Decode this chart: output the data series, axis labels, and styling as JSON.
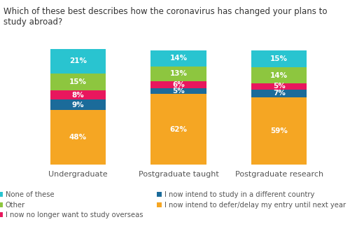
{
  "title": "Which of these best describes how the coronavirus has changed your plans to study abroad?",
  "categories": [
    "Undergraduate",
    "Postgraduate taught",
    "Postgraduate research"
  ],
  "segments": [
    {
      "label": "I now intend to defer/delay my entry until next year",
      "color": "#F5A623",
      "values": [
        48,
        62,
        59
      ]
    },
    {
      "label": "I now intend to study in a different country",
      "color": "#1B6B9A",
      "values": [
        9,
        5,
        7
      ]
    },
    {
      "label": "I now no longer want to study overseas",
      "color": "#E8175D",
      "values": [
        8,
        6,
        5
      ]
    },
    {
      "label": "Other",
      "color": "#8DC63F",
      "values": [
        15,
        13,
        14
      ]
    },
    {
      "label": "None of these",
      "color": "#29C4D0",
      "values": [
        21,
        14,
        15
      ]
    }
  ],
  "background_color": "#FFFFFF",
  "title_fontsize": 8.5,
  "label_fontsize": 7.5,
  "tick_fontsize": 8,
  "legend_fontsize": 7.2,
  "bar_width": 0.55
}
